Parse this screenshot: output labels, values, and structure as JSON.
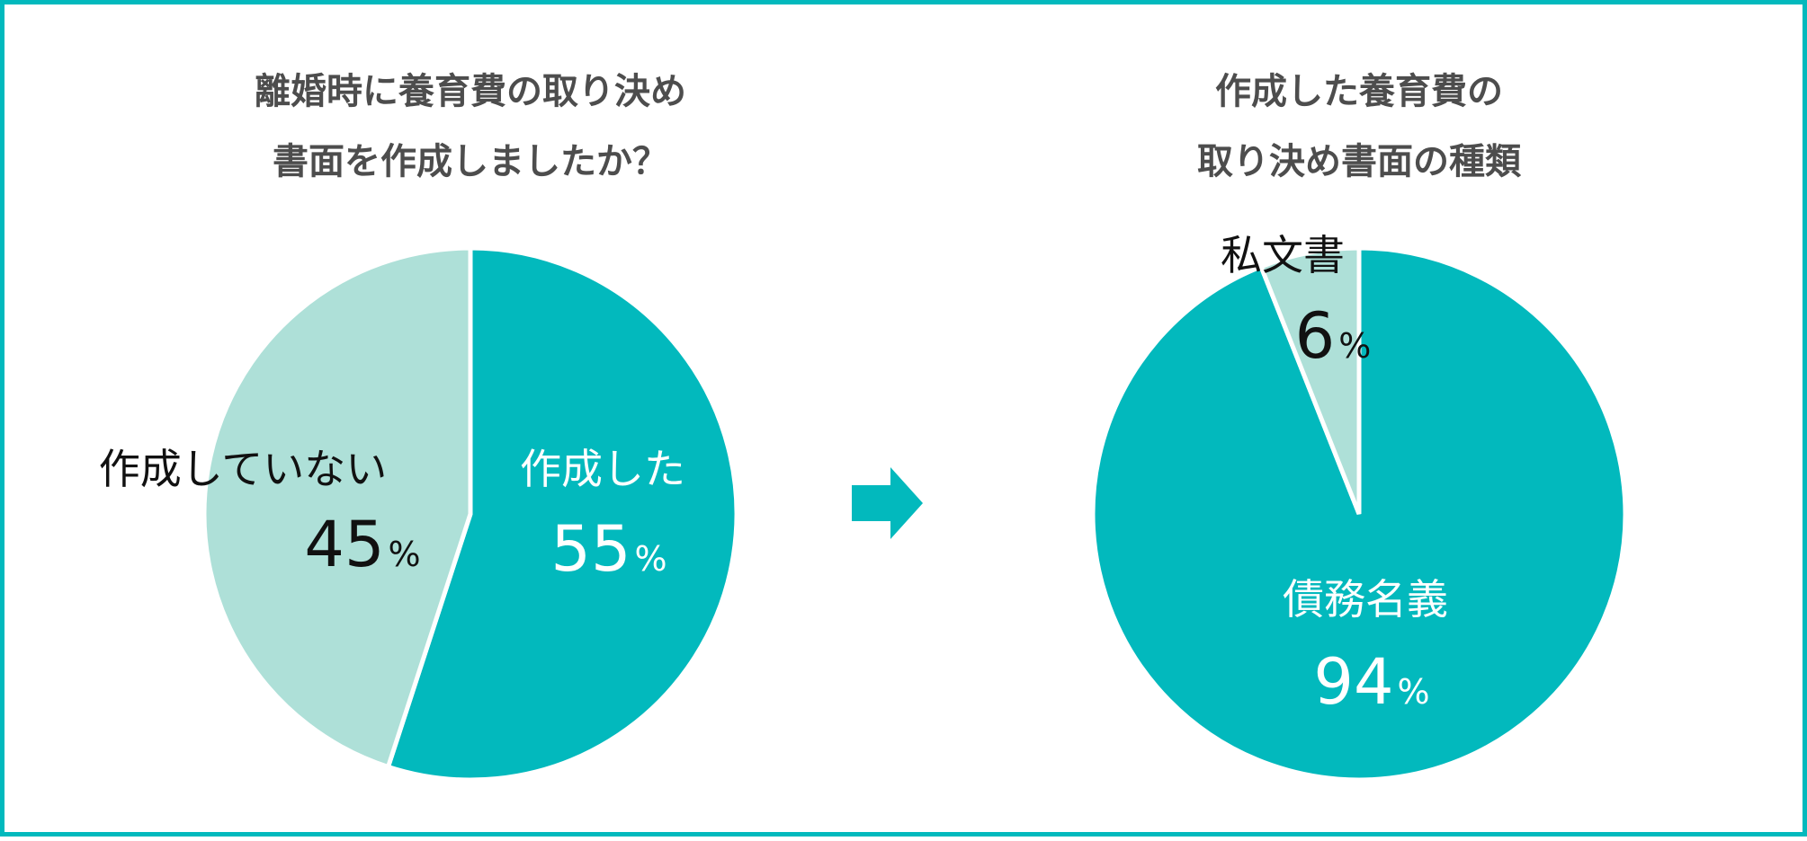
{
  "colors": {
    "primary": "#02b9bd",
    "secondary": "#aee0d8",
    "border": "#02b9bd",
    "title": "#4d4d4d",
    "dark_text": "#111111",
    "light_text": "#ffffff"
  },
  "arrow_icon": "right-arrow-icon",
  "chart_data": [
    {
      "type": "pie",
      "title_lines": [
        "離婚時に養育費の取り決め",
        "書面を作成しましたか？"
      ],
      "unit": "%",
      "slices": [
        {
          "label": "作成した",
          "value": 55,
          "color": "#02b9bd"
        },
        {
          "label": "作成していない",
          "value": 45,
          "color": "#aee0d8"
        }
      ]
    },
    {
      "type": "pie",
      "title_lines": [
        "作成した養育費の",
        "取り決め書面の種類"
      ],
      "unit": "%",
      "slices": [
        {
          "label": "債務名義",
          "value": 94,
          "color": "#02b9bd"
        },
        {
          "label": "私文書",
          "value": 6,
          "color": "#aee0d8"
        }
      ]
    }
  ]
}
